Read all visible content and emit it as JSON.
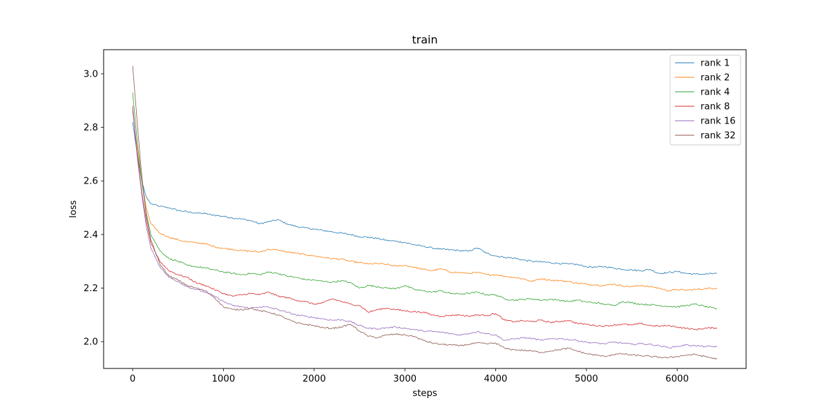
{
  "chart_data": {
    "type": "line",
    "title": "train",
    "xlabel": "steps",
    "ylabel": "loss",
    "xlim": [
      -320,
      6760
    ],
    "ylim": [
      1.9,
      3.09
    ],
    "xticks": [
      0,
      1000,
      2000,
      3000,
      4000,
      5000,
      6000
    ],
    "yticks": [
      2.0,
      2.2,
      2.4,
      2.6,
      2.8,
      3.0
    ],
    "xtick_labels": [
      "0",
      "1000",
      "2000",
      "3000",
      "4000",
      "5000",
      "6000"
    ],
    "ytick_labels": [
      "2.0",
      "2.2",
      "2.4",
      "2.6",
      "2.8",
      "3.0"
    ],
    "grid": false,
    "legend_position": "top-right",
    "series": [
      {
        "name": "rank 1",
        "color": "#1f77b4",
        "x": [
          0,
          50,
          100,
          150,
          200,
          300,
          400,
          500,
          600,
          700,
          800,
          900,
          1000,
          1100,
          1200,
          1300,
          1400,
          1500,
          1600,
          1700,
          1800,
          1900,
          2000,
          2100,
          2200,
          2300,
          2400,
          2500,
          2600,
          2700,
          2800,
          2900,
          3000,
          3100,
          3200,
          3300,
          3400,
          3500,
          3600,
          3700,
          3800,
          3900,
          4000,
          4100,
          4200,
          4300,
          4400,
          4500,
          4600,
          4700,
          4800,
          4900,
          5000,
          5100,
          5200,
          5300,
          5400,
          5500,
          5600,
          5700,
          5800,
          5900,
          6000,
          6100,
          6200,
          6300,
          6440
        ],
        "values": [
          2.82,
          2.7,
          2.6,
          2.54,
          2.515,
          2.505,
          2.5,
          2.49,
          2.485,
          2.48,
          2.478,
          2.472,
          2.468,
          2.462,
          2.458,
          2.452,
          2.44,
          2.448,
          2.455,
          2.44,
          2.43,
          2.425,
          2.42,
          2.415,
          2.41,
          2.405,
          2.4,
          2.392,
          2.39,
          2.385,
          2.378,
          2.375,
          2.37,
          2.362,
          2.356,
          2.35,
          2.345,
          2.343,
          2.34,
          2.338,
          2.35,
          2.33,
          2.32,
          2.315,
          2.312,
          2.305,
          2.3,
          2.298,
          2.295,
          2.292,
          2.29,
          2.288,
          2.28,
          2.278,
          2.28,
          2.275,
          2.27,
          2.268,
          2.265,
          2.27,
          2.255,
          2.258,
          2.262,
          2.255,
          2.252,
          2.252,
          2.255
        ]
      },
      {
        "name": "rank 2",
        "color": "#ff7f0e",
        "x": [
          0,
          50,
          100,
          150,
          200,
          300,
          400,
          500,
          600,
          700,
          800,
          900,
          1000,
          1100,
          1200,
          1300,
          1400,
          1500,
          1600,
          1700,
          1800,
          1900,
          2000,
          2100,
          2200,
          2300,
          2400,
          2500,
          2600,
          2700,
          2800,
          2900,
          3000,
          3100,
          3200,
          3300,
          3400,
          3500,
          3600,
          3700,
          3800,
          3900,
          4000,
          4100,
          4200,
          4300,
          4400,
          4500,
          4600,
          4700,
          4800,
          4900,
          5000,
          5100,
          5200,
          5300,
          5400,
          5500,
          5600,
          5700,
          5800,
          5900,
          6000,
          6100,
          6200,
          6300,
          6440
        ],
        "values": [
          2.86,
          2.72,
          2.6,
          2.5,
          2.44,
          2.405,
          2.39,
          2.38,
          2.372,
          2.37,
          2.365,
          2.355,
          2.348,
          2.345,
          2.34,
          2.338,
          2.335,
          2.345,
          2.342,
          2.335,
          2.33,
          2.325,
          2.32,
          2.315,
          2.31,
          2.308,
          2.3,
          2.295,
          2.29,
          2.292,
          2.288,
          2.282,
          2.285,
          2.278,
          2.27,
          2.265,
          2.272,
          2.26,
          2.258,
          2.255,
          2.258,
          2.25,
          2.25,
          2.244,
          2.24,
          2.235,
          2.225,
          2.235,
          2.23,
          2.228,
          2.225,
          2.218,
          2.215,
          2.212,
          2.21,
          2.215,
          2.208,
          2.205,
          2.21,
          2.205,
          2.2,
          2.19,
          2.195,
          2.192,
          2.195,
          2.198,
          2.2
        ]
      },
      {
        "name": "rank 4",
        "color": "#2ca02c",
        "x": [
          0,
          50,
          100,
          150,
          200,
          300,
          400,
          500,
          600,
          700,
          800,
          900,
          1000,
          1100,
          1200,
          1300,
          1400,
          1500,
          1600,
          1700,
          1800,
          1900,
          2000,
          2100,
          2200,
          2300,
          2400,
          2500,
          2600,
          2700,
          2800,
          2900,
          3000,
          3100,
          3200,
          3300,
          3400,
          3500,
          3600,
          3700,
          3800,
          3900,
          4000,
          4100,
          4200,
          4300,
          4400,
          4500,
          4600,
          4700,
          4800,
          4900,
          5000,
          5100,
          5200,
          5300,
          5400,
          5500,
          5600,
          5700,
          5800,
          5900,
          6000,
          6100,
          6200,
          6300,
          6440
        ],
        "values": [
          2.93,
          2.75,
          2.6,
          2.48,
          2.4,
          2.34,
          2.31,
          2.3,
          2.285,
          2.28,
          2.275,
          2.268,
          2.26,
          2.255,
          2.25,
          2.255,
          2.25,
          2.26,
          2.255,
          2.245,
          2.24,
          2.232,
          2.23,
          2.225,
          2.222,
          2.228,
          2.22,
          2.2,
          2.21,
          2.205,
          2.2,
          2.198,
          2.21,
          2.195,
          2.19,
          2.185,
          2.19,
          2.18,
          2.178,
          2.18,
          2.185,
          2.175,
          2.175,
          2.16,
          2.155,
          2.158,
          2.16,
          2.155,
          2.158,
          2.155,
          2.15,
          2.155,
          2.148,
          2.145,
          2.14,
          2.135,
          2.15,
          2.145,
          2.14,
          2.138,
          2.135,
          2.132,
          2.13,
          2.135,
          2.14,
          2.132,
          2.122
        ]
      },
      {
        "name": "rank 8",
        "color": "#d62728",
        "x": [
          0,
          50,
          100,
          150,
          200,
          300,
          400,
          500,
          600,
          700,
          800,
          900,
          1000,
          1100,
          1200,
          1300,
          1400,
          1500,
          1600,
          1700,
          1800,
          1900,
          2000,
          2100,
          2200,
          2300,
          2400,
          2500,
          2600,
          2700,
          2800,
          2900,
          3000,
          3100,
          3200,
          3300,
          3400,
          3500,
          3600,
          3700,
          3800,
          3900,
          4000,
          4100,
          4200,
          4300,
          4400,
          4500,
          4600,
          4700,
          4800,
          4900,
          5000,
          5100,
          5200,
          5300,
          5400,
          5500,
          5600,
          5700,
          5800,
          5900,
          6000,
          6100,
          6200,
          6300,
          6440
        ],
        "values": [
          2.88,
          2.7,
          2.56,
          2.45,
          2.37,
          2.3,
          2.265,
          2.25,
          2.24,
          2.22,
          2.21,
          2.195,
          2.18,
          2.17,
          2.175,
          2.18,
          2.175,
          2.185,
          2.17,
          2.165,
          2.155,
          2.15,
          2.14,
          2.145,
          2.16,
          2.15,
          2.14,
          2.135,
          2.11,
          2.12,
          2.125,
          2.12,
          2.115,
          2.112,
          2.11,
          2.1,
          2.095,
          2.098,
          2.1,
          2.095,
          2.1,
          2.098,
          2.105,
          2.08,
          2.075,
          2.078,
          2.075,
          2.08,
          2.072,
          2.075,
          2.08,
          2.068,
          2.065,
          2.06,
          2.058,
          2.062,
          2.065,
          2.062,
          2.068,
          2.06,
          2.058,
          2.06,
          2.055,
          2.05,
          2.045,
          2.05,
          2.052
        ]
      },
      {
        "name": "rank 16",
        "color": "#9467bd",
        "x": [
          0,
          50,
          100,
          150,
          200,
          300,
          400,
          500,
          600,
          700,
          800,
          900,
          1000,
          1100,
          1200,
          1300,
          1400,
          1500,
          1600,
          1700,
          1800,
          1900,
          2000,
          2100,
          2200,
          2300,
          2400,
          2500,
          2600,
          2700,
          2800,
          2900,
          3000,
          3100,
          3200,
          3300,
          3400,
          3500,
          3600,
          3700,
          3800,
          3900,
          4000,
          4100,
          4200,
          4300,
          4400,
          4500,
          4600,
          4700,
          4800,
          4900,
          5000,
          5100,
          5200,
          5300,
          5400,
          5500,
          5600,
          5700,
          5800,
          5900,
          6000,
          6100,
          6200,
          6300,
          6440
        ],
        "values": [
          2.87,
          2.69,
          2.55,
          2.43,
          2.35,
          2.28,
          2.24,
          2.225,
          2.205,
          2.195,
          2.185,
          2.17,
          2.15,
          2.135,
          2.13,
          2.125,
          2.13,
          2.128,
          2.12,
          2.11,
          2.1,
          2.095,
          2.09,
          2.085,
          2.08,
          2.082,
          2.075,
          2.06,
          2.05,
          2.048,
          2.052,
          2.055,
          2.05,
          2.045,
          2.04,
          2.038,
          2.035,
          2.03,
          2.025,
          2.03,
          2.038,
          2.03,
          2.025,
          2.005,
          2.01,
          2.015,
          2.012,
          2.005,
          2.01,
          2.012,
          2.008,
          2.005,
          1.998,
          1.995,
          1.992,
          1.998,
          1.995,
          1.99,
          1.993,
          1.99,
          1.985,
          1.978,
          1.982,
          1.988,
          1.985,
          1.982,
          1.982
        ]
      },
      {
        "name": "rank 32",
        "color": "#8c564b",
        "x": [
          0,
          50,
          100,
          150,
          200,
          300,
          400,
          500,
          600,
          700,
          800,
          900,
          1000,
          1100,
          1200,
          1300,
          1400,
          1500,
          1600,
          1700,
          1800,
          1900,
          2000,
          2100,
          2200,
          2300,
          2400,
          2500,
          2600,
          2700,
          2800,
          2900,
          3000,
          3100,
          3200,
          3300,
          3400,
          3500,
          3600,
          3700,
          3800,
          3900,
          4000,
          4100,
          4200,
          4300,
          4400,
          4500,
          4600,
          4700,
          4800,
          4900,
          5000,
          5100,
          5200,
          5300,
          5400,
          5500,
          5600,
          5700,
          5800,
          5900,
          6000,
          6100,
          6200,
          6300,
          6440
        ],
        "values": [
          3.03,
          2.82,
          2.62,
          2.47,
          2.38,
          2.29,
          2.245,
          2.23,
          2.21,
          2.2,
          2.19,
          2.165,
          2.13,
          2.12,
          2.12,
          2.125,
          2.115,
          2.11,
          2.1,
          2.085,
          2.07,
          2.065,
          2.06,
          2.052,
          2.05,
          2.055,
          2.065,
          2.04,
          2.02,
          2.015,
          2.025,
          2.028,
          2.025,
          2.02,
          2.005,
          1.995,
          1.99,
          1.988,
          1.985,
          1.99,
          1.995,
          1.992,
          1.995,
          1.975,
          1.97,
          1.968,
          1.965,
          1.96,
          1.965,
          1.97,
          1.975,
          1.965,
          1.955,
          1.95,
          1.945,
          1.952,
          1.955,
          1.95,
          1.948,
          1.945,
          1.942,
          1.94,
          1.945,
          1.95,
          1.952,
          1.945,
          1.935
        ]
      }
    ]
  }
}
